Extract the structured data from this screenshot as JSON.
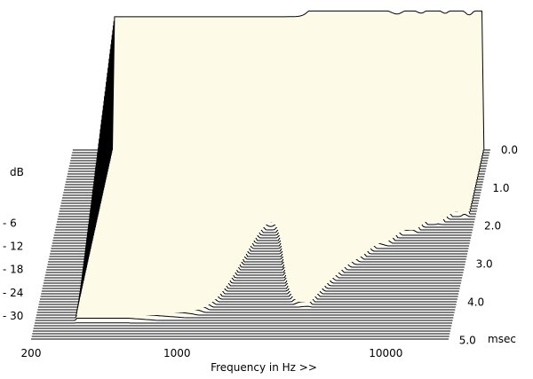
{
  "chart_data": {
    "type": "line",
    "title": "",
    "xlabel": "Frequency in Hz >>",
    "ylabel": "dB",
    "zlabel": "msec",
    "x_scale": "log",
    "xlim": [
      200,
      20000
    ],
    "x_ticks": [
      200,
      1000,
      10000
    ],
    "x_tick_labels": [
      "200",
      "1000",
      "10000"
    ],
    "y_ticks": [
      -6,
      -12,
      -18,
      -24,
      -30
    ],
    "y_tick_labels": [
      "- 6",
      "- 12",
      "- 18",
      "- 24",
      "- 30"
    ],
    "time_ticks": [
      0.0,
      1.0,
      2.0,
      3.0,
      4.0,
      5.0
    ],
    "time_tick_labels": [
      "0.0",
      "1.0",
      "2.0",
      "3.0",
      "4.0",
      "5.0"
    ],
    "time_unit_label": "msec",
    "slice_count": 72,
    "time_step_ms": 0.07,
    "floor_db": -36,
    "grid": false,
    "fill_color": "#fdfae8",
    "line_color": "#000000"
  }
}
